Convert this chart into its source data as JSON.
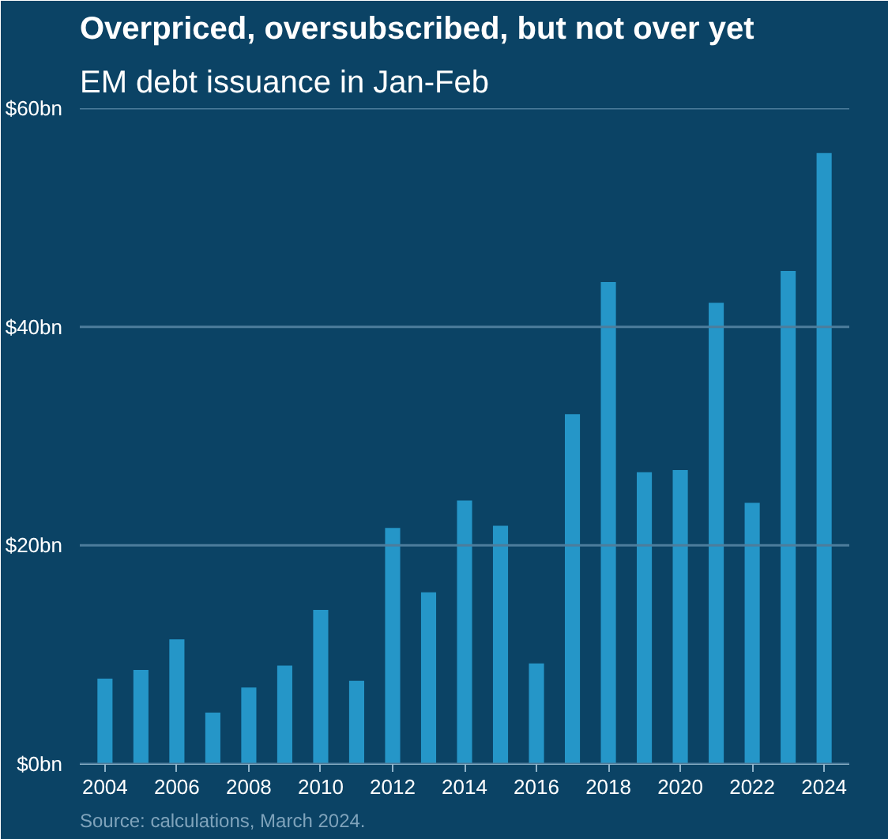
{
  "chart_data": {
    "type": "bar",
    "title": "Overpriced, oversubscribed, but not over yet",
    "subtitle": "EM debt issuance in Jan-Feb",
    "categories": [
      "2004",
      null,
      "2006",
      null,
      "2008",
      null,
      "2010",
      null,
      "2012",
      null,
      "2014",
      null,
      "2016",
      null,
      "2018",
      null,
      "2020",
      null,
      "2022",
      null,
      "2024"
    ],
    "values": [
      7.8,
      8.6,
      11.4,
      4.7,
      7.0,
      9.0,
      14.1,
      7.6,
      21.6,
      15.7,
      24.1,
      21.8,
      9.2,
      32.0,
      44.1,
      26.7,
      26.9,
      42.2,
      23.9,
      45.1,
      55.9
    ],
    "color": "#2596c8",
    "ylim": [
      0,
      60
    ],
    "yticks": [
      {
        "value": 0,
        "label": "$0bn"
      },
      {
        "value": 20,
        "label": "$20bn"
      },
      {
        "value": 40,
        "label": "$40bn"
      },
      {
        "value": 60,
        "label": "$60bn"
      }
    ],
    "grid": "y",
    "annotations": [
      "Source: calculations, March 2024."
    ]
  }
}
